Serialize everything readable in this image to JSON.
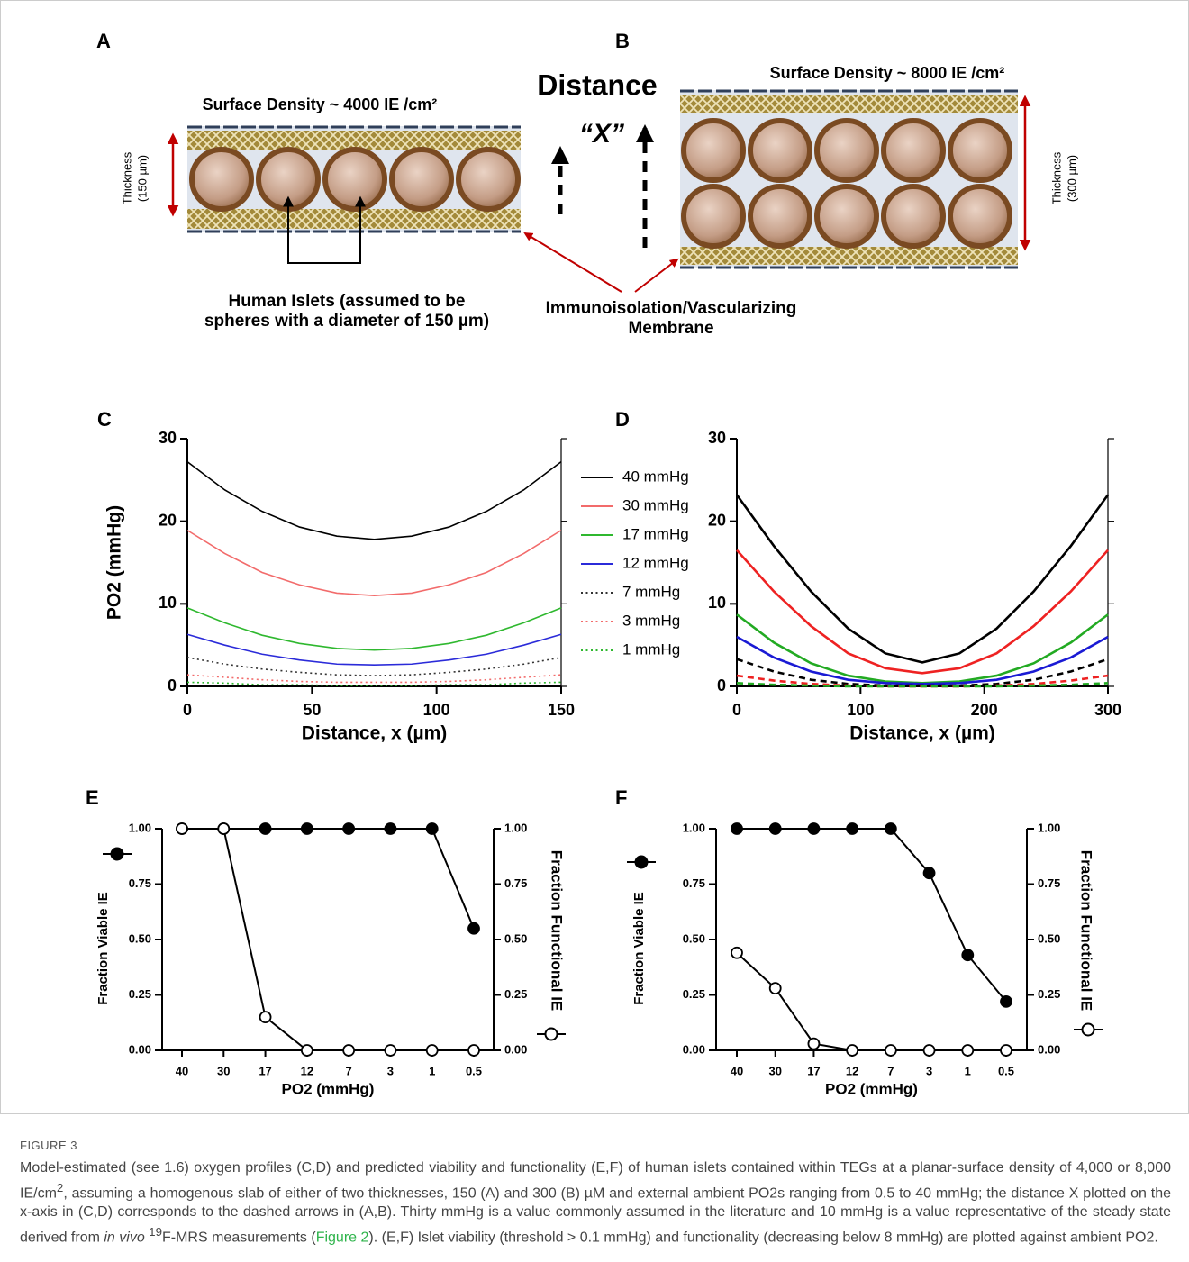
{
  "diagram": {
    "panel_a": {
      "label": "A",
      "surface_density": "Surface  Density ~ 4000 IE /cm²",
      "thickness": [
        "Thickness",
        "(150 µm)"
      ]
    },
    "panel_b": {
      "label": "B",
      "surface_density": "Surface Density ~ 8000 IE /cm²",
      "thickness": [
        "Thickness",
        "(300 µm)"
      ]
    },
    "distance_title": "Distance",
    "distance_var": "“X”",
    "islets_label": [
      "Human Islets  (assumed to be",
      "spheres with a diameter of 150 µm)"
    ],
    "membrane_label": [
      "Immunoisolation/Vascularizing",
      "Membrane"
    ]
  },
  "chart_data": [
    {
      "type": "line",
      "panel_label": "C",
      "xlabel": "Distance, x (µm)",
      "ylabel": "PO2 (mmHg)",
      "xlim": [
        0,
        150
      ],
      "ylim": [
        0,
        30
      ],
      "xticks": [
        0,
        50,
        100,
        150
      ],
      "yticks": [
        0,
        10,
        20,
        30
      ],
      "x": [
        0,
        15,
        30,
        45,
        60,
        75,
        90,
        105,
        120,
        135,
        150
      ],
      "series": [
        {
          "name": "40 mmHg",
          "color": "#000000",
          "linestyle": "solid",
          "values": [
            27.2,
            23.8,
            21.2,
            19.3,
            18.2,
            17.8,
            18.2,
            19.3,
            21.2,
            23.8,
            27.2
          ]
        },
        {
          "name": "30 mmHg",
          "color": "#f26b6b",
          "linestyle": "solid",
          "values": [
            18.9,
            16.1,
            13.8,
            12.3,
            11.3,
            11.0,
            11.3,
            12.3,
            13.8,
            16.1,
            18.9
          ]
        },
        {
          "name": "17 mmHg",
          "color": "#2fb82f",
          "linestyle": "solid",
          "values": [
            9.5,
            7.7,
            6.2,
            5.2,
            4.6,
            4.4,
            4.6,
            5.2,
            6.2,
            7.7,
            9.5
          ]
        },
        {
          "name": "12 mmHg",
          "color": "#2b2bd9",
          "linestyle": "solid",
          "values": [
            6.3,
            5.0,
            3.9,
            3.2,
            2.7,
            2.6,
            2.7,
            3.2,
            3.9,
            5.0,
            6.3
          ]
        },
        {
          "name": "7 mmHg",
          "color": "#333333",
          "linestyle": "dotted",
          "values": [
            3.5,
            2.7,
            2.1,
            1.7,
            1.4,
            1.3,
            1.4,
            1.7,
            2.1,
            2.7,
            3.5
          ]
        },
        {
          "name": "3 mmHg",
          "color": "#f26b6b",
          "linestyle": "dotted",
          "values": [
            1.4,
            1.1,
            0.8,
            0.6,
            0.5,
            0.5,
            0.5,
            0.6,
            0.8,
            1.1,
            1.4
          ]
        },
        {
          "name": "1 mmHg",
          "color": "#2fb82f",
          "linestyle": "dotted",
          "values": [
            0.5,
            0.4,
            0.2,
            0.2,
            0.1,
            0.1,
            0.1,
            0.2,
            0.2,
            0.4,
            0.5
          ]
        }
      ]
    },
    {
      "type": "line",
      "panel_label": "D",
      "xlabel": "Distance, x (µm)",
      "xlim": [
        0,
        300
      ],
      "ylim": [
        0,
        30
      ],
      "xticks": [
        0,
        100,
        200,
        300
      ],
      "yticks": [
        0,
        10,
        20,
        30
      ],
      "x": [
        0,
        30,
        60,
        90,
        120,
        150,
        180,
        210,
        240,
        270,
        300
      ],
      "series": [
        {
          "color": "#000000",
          "linestyle": "solid",
          "values": [
            23.2,
            17.0,
            11.5,
            7.0,
            4.0,
            2.9,
            4.0,
            7.0,
            11.5,
            17.0,
            23.2
          ]
        },
        {
          "color": "#ee2222",
          "linestyle": "solid",
          "values": [
            16.5,
            11.5,
            7.3,
            4.0,
            2.2,
            1.6,
            2.2,
            4.0,
            7.3,
            11.5,
            16.5
          ]
        },
        {
          "color": "#22aa22",
          "linestyle": "solid",
          "values": [
            8.7,
            5.3,
            2.8,
            1.3,
            0.6,
            0.4,
            0.6,
            1.3,
            2.8,
            5.3,
            8.7
          ]
        },
        {
          "color": "#1a1ad4",
          "linestyle": "solid",
          "values": [
            6.0,
            3.5,
            1.8,
            0.8,
            0.4,
            0.3,
            0.4,
            0.8,
            1.8,
            3.5,
            6.0
          ]
        },
        {
          "color": "#000000",
          "linestyle": "dashed",
          "values": [
            3.3,
            1.8,
            0.8,
            0.3,
            0.1,
            0.1,
            0.1,
            0.3,
            0.8,
            1.8,
            3.3
          ]
        },
        {
          "color": "#ee2222",
          "linestyle": "dashed",
          "values": [
            1.3,
            0.7,
            0.3,
            0.1,
            0.0,
            0.0,
            0.0,
            0.1,
            0.3,
            0.7,
            1.3
          ]
        },
        {
          "color": "#22aa22",
          "linestyle": "dashed",
          "values": [
            0.4,
            0.2,
            0.1,
            0.0,
            0.0,
            0.0,
            0.0,
            0.0,
            0.1,
            0.2,
            0.4
          ]
        }
      ]
    },
    {
      "type": "line",
      "panel_label": "E",
      "xlabel": "PO2 (mmHg)",
      "ylabel": "Fraction Viable IE",
      "y2label": "Fraction Functional IE",
      "categories": [
        "40",
        "30",
        "17",
        "12",
        "7",
        "3",
        "1",
        "0.5"
      ],
      "ylim": [
        0,
        1
      ],
      "y2lim": [
        0,
        1
      ],
      "yticks": [
        {
          "value": 0,
          "label": "0.00"
        },
        {
          "value": 0.25,
          "label": "0.25"
        },
        {
          "value": 0.5,
          "label": "0.50"
        },
        {
          "value": 0.75,
          "label": "0.75"
        },
        {
          "value": 1,
          "label": "1.00"
        }
      ],
      "y2ticks": [
        {
          "value": 0,
          "label": "0.00"
        },
        {
          "value": 0.25,
          "label": "0.25"
        },
        {
          "value": 0.5,
          "label": "0.50"
        },
        {
          "value": 0.75,
          "label": "0.75"
        },
        {
          "value": 1,
          "label": "1.00"
        }
      ],
      "series": [
        {
          "color": "#000000",
          "marker": "filled",
          "axis": "y",
          "values": [
            1,
            1,
            1,
            1,
            1,
            1,
            1,
            0.55
          ]
        },
        {
          "color": "#000000",
          "marker": "open",
          "axis": "y2",
          "values": [
            1,
            1,
            0.15,
            0,
            0,
            0,
            0,
            0
          ]
        }
      ]
    },
    {
      "type": "line",
      "panel_label": "F",
      "xlabel": "PO2 (mmHg)",
      "ylabel": "Fraction Viable IE",
      "y2label": "Fraction Functional IE",
      "categories": [
        "40",
        "30",
        "17",
        "12",
        "7",
        "3",
        "1",
        "0.5"
      ],
      "ylim": [
        0,
        1
      ],
      "y2lim": [
        0,
        1
      ],
      "yticks": [
        {
          "value": 0,
          "label": "0.00"
        },
        {
          "value": 0.25,
          "label": "0.25"
        },
        {
          "value": 0.5,
          "label": "0.50"
        },
        {
          "value": 0.75,
          "label": "0.75"
        },
        {
          "value": 1,
          "label": "1.00"
        }
      ],
      "y2ticks": [
        {
          "value": 0,
          "label": "0.00"
        },
        {
          "value": 0.25,
          "label": "0.25"
        },
        {
          "value": 0.5,
          "label": "0.50"
        },
        {
          "value": 0.75,
          "label": "0.75"
        },
        {
          "value": 1,
          "label": "1.00"
        }
      ],
      "series": [
        {
          "color": "#000000",
          "marker": "filled",
          "axis": "y",
          "values": [
            1,
            1,
            1,
            1,
            1,
            0.8,
            0.43,
            0.22
          ]
        },
        {
          "color": "#000000",
          "marker": "open",
          "axis": "y2",
          "values": [
            0.44,
            0.28,
            0.03,
            0,
            0,
            0,
            0,
            0
          ]
        }
      ]
    }
  ],
  "caption": {
    "label": "FIGURE 3",
    "runs": [
      "Model-estimated (see 1.6) oxygen profiles (C,D) and predicted viability and functionality (E,F) of human islets contained within TEGs at a planar-surface density of 4,000 or 8,000 IE/cm",
      "2",
      ", assuming a homogenous slab of either of two thicknesses, 150 (A) and 300 (B) µM and external ambient PO2s ranging from 0.5 to 40 mmHg; the distance X plotted on the x-axis in (C,D) corresponds to the dashed arrows in (A,B). Thirty mmHg is a value commonly assumed in the literature and 10 mmHg is a value representative of the steady state derived from ",
      "in vivo ",
      "19",
      "F-MRS measurements (",
      "Figure 2",
      "). (E,F) Islet viability (threshold > 0.1 mmHg) and functionality (decreasing below 8 mmHg) are plotted against ambient PO2."
    ]
  }
}
